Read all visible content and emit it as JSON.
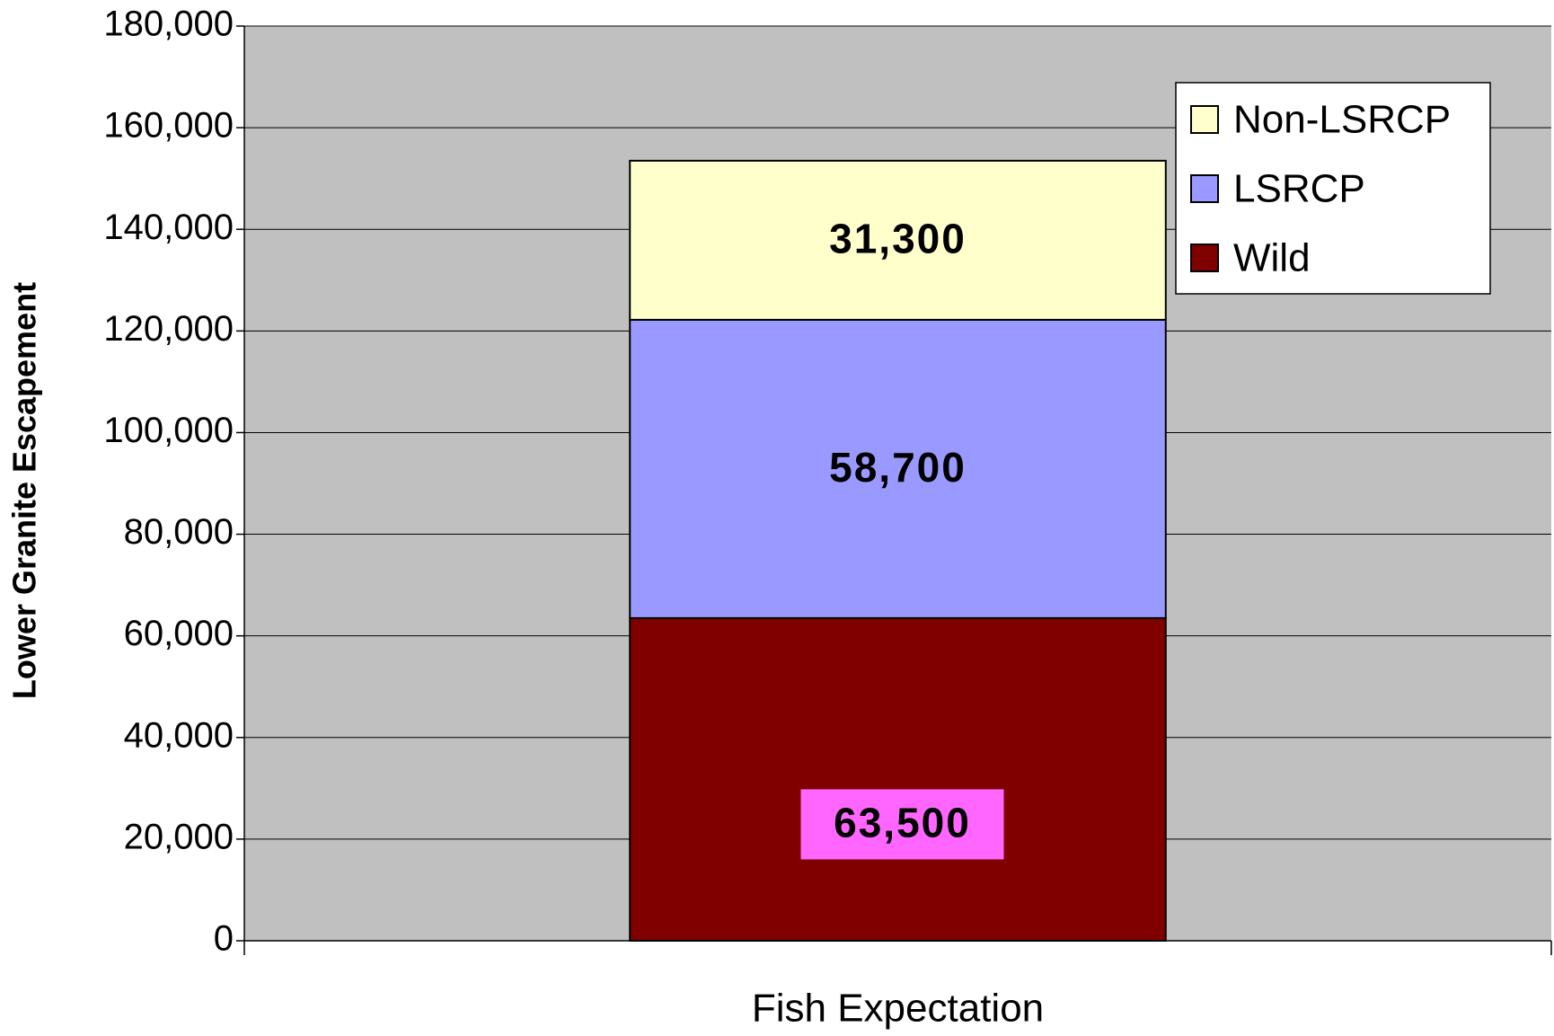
{
  "chart_data": {
    "type": "stacked_bar",
    "ylabel": "Lower Granite Escapement",
    "categories": [
      "Fish Expectation"
    ],
    "series": [
      {
        "name": "Wild",
        "color": "#800000",
        "values": [
          63500
        ],
        "value_labels": [
          "63,500"
        ],
        "label_background": "#ff66ff"
      },
      {
        "name": "LSRCP",
        "color": "#9999ff",
        "values": [
          58700
        ],
        "value_labels": [
          "58,700"
        ]
      },
      {
        "name": "Non-LSRCP",
        "color": "#ffffcc",
        "values": [
          31300
        ],
        "value_labels": [
          "31,300"
        ]
      }
    ],
    "ylim": [
      0,
      180000
    ],
    "yticks": [
      0,
      {
        "value": 20000,
        "label": "20,000"
      },
      {
        "value": 40000,
        "label": "40,000"
      },
      {
        "value": 60000,
        "label": "60,000"
      },
      {
        "value": 80000,
        "label": "80,000"
      },
      {
        "value": 100000,
        "label": "100,000"
      },
      {
        "value": 120000,
        "label": "120,000"
      },
      {
        "value": 140000,
        "label": "140,000"
      },
      {
        "value": 160000,
        "label": "160,000"
      },
      {
        "value": 180000,
        "label": "180,000"
      }
    ],
    "grid": true,
    "legend": "upper right",
    "background": "#c0c0c0"
  }
}
